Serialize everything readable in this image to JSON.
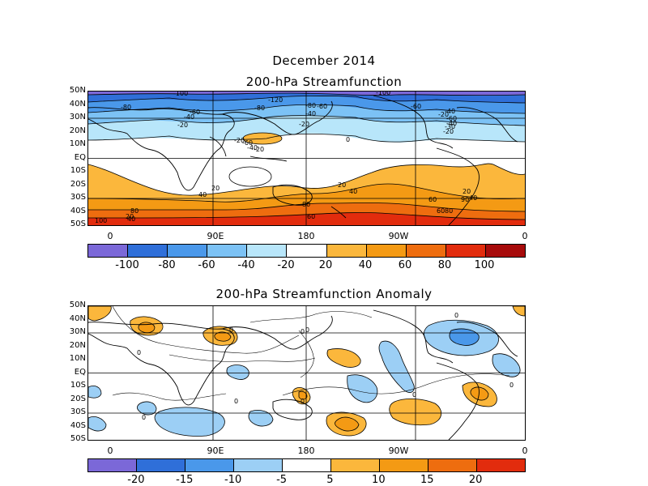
{
  "header": {
    "title_line1": "December 2014",
    "title_line2": "200-hPa Streamfunction"
  },
  "panel1": {
    "lat_labels": [
      "50N",
      "40N",
      "30N",
      "20N",
      "10N",
      "EQ",
      "10S",
      "20S",
      "30S",
      "40S",
      "50S"
    ],
    "lon_labels": [
      "0",
      "90E",
      "180",
      "90W",
      "0"
    ],
    "contour_labels": [
      "-100",
      "-120",
      "-100",
      "-80",
      "-60",
      "-40",
      "-20",
      "-80",
      "-60",
      "-40",
      "-20",
      "-60",
      "-40",
      "-20",
      "-80",
      "-60",
      "-40",
      "-30",
      "-20",
      "-20",
      "-60",
      "-40",
      "-20",
      "0",
      "20",
      "40",
      "20",
      "40",
      "20",
      "40",
      "60",
      "80",
      "80",
      "60",
      "80",
      "100",
      "20",
      "40",
      "60",
      "90"
    ]
  },
  "colorbar1": {
    "ticks": [
      "-100",
      "-80",
      "-60",
      "-40",
      "-20",
      "20",
      "40",
      "60",
      "80",
      "100"
    ],
    "colors": [
      "#7b68d8",
      "#2f6fd9",
      "#4a98ea",
      "#7cc2f5",
      "#b8e6fa",
      "#ffffff",
      "#fbb73c",
      "#f49a14",
      "#ee6d0f",
      "#e22c0d",
      "#a70b0b"
    ]
  },
  "panel2": {
    "title": "200-hPa Streamfunction Anomaly",
    "lat_labels": [
      "50N",
      "40N",
      "30N",
      "20N",
      "10N",
      "EQ",
      "10S",
      "20S",
      "30S",
      "40S",
      "50S"
    ],
    "lon_labels": [
      "0",
      "90E",
      "180",
      "90W",
      "0"
    ],
    "contour_labels": [
      "0",
      "0",
      "0",
      "0",
      "0",
      "0",
      "0",
      "0",
      "0",
      "0"
    ]
  },
  "colorbar2": {
    "ticks": [
      "-20",
      "-15",
      "-10",
      "-5",
      "5",
      "10",
      "15",
      "20"
    ],
    "colors": [
      "#7b68d8",
      "#2f6fd9",
      "#4a98ea",
      "#9ccff5",
      "#ffffff",
      "#fbb73c",
      "#f49a14",
      "#ee6d0f",
      "#e22c0d"
    ]
  }
}
